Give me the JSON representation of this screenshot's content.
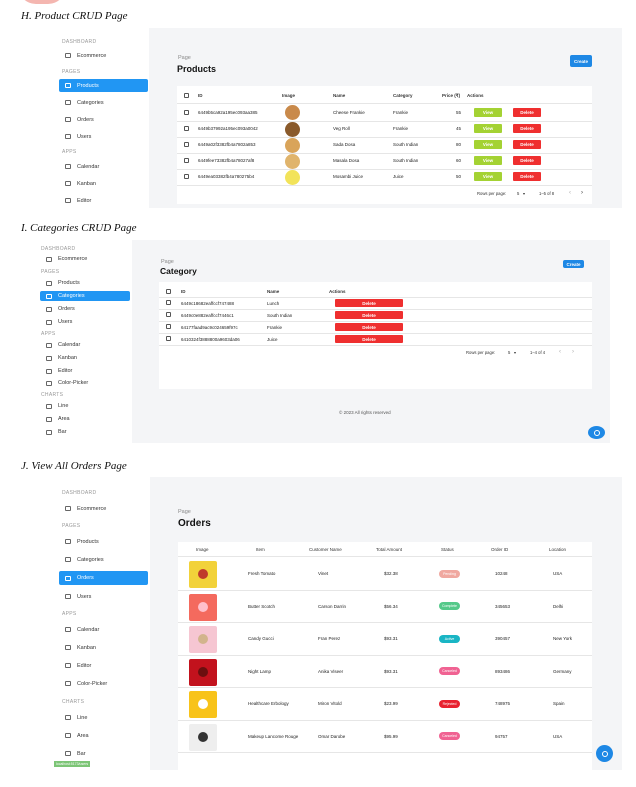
{
  "captions": {
    "h": "H.  Product CRUD Page",
    "i": "I.   Categories CRUD Page",
    "j": "J.   View All Orders Page"
  },
  "colors": {
    "primary": "#2196f3",
    "view": "#a4d233",
    "delete": "#ef2f2f"
  },
  "sidebar": {
    "dashboard": "DASHBOARD",
    "ecommerce": "Ecommerce",
    "pages": "PAGES",
    "products": "Products",
    "categories": "Categories",
    "orders": "Orders",
    "users": "Users",
    "apps": "APPS",
    "calendar": "Calendar",
    "kanban": "Kanban",
    "editor": "Editor",
    "color_picker": "Color-Picker",
    "charts": "CHARTS",
    "line": "Line",
    "area": "Area",
    "bar": "Bar"
  },
  "products": {
    "page_label": "Page",
    "title": "Products",
    "create": "Create",
    "headers": {
      "id": "ID",
      "image": "Image",
      "name": "Name",
      "category": "Category",
      "price": "Price (₹)",
      "actions": "Actions"
    },
    "rows": [
      {
        "id": "6449b5ca92a195ec093aa385",
        "name": "Cheese Frankie",
        "category": "Frankie",
        "price": "55"
      },
      {
        "id": "6449b37992a195ec093a0042",
        "name": "Veg Roll",
        "category": "Frankie",
        "price": "45"
      },
      {
        "id": "6449a02f3382fb4a7802a853",
        "name": "Sada Dosa",
        "category": "South Indian",
        "price": "80"
      },
      {
        "id": "6449fee73382fb4a78027af8",
        "name": "Masala Dosa",
        "category": "South Indian",
        "price": "60"
      },
      {
        "id": "6449ea03382fb4a780275b4",
        "name": "Mosambi Juice",
        "category": "Juice",
        "price": "50"
      }
    ],
    "view": "View",
    "delete": "Delete",
    "pagination": {
      "label": "Rows per page:",
      "value": "5",
      "range": "1–5 of 8"
    }
  },
  "categories": {
    "page_label": "Page",
    "title": "Category",
    "create": "Create",
    "headers": {
      "id": "ID",
      "name": "Name",
      "actions": "Actions"
    },
    "rows": [
      {
        "id": "6449c18682eaffccf747488",
        "name": "Lunch"
      },
      {
        "id": "6449c0e882eaffccf7446c1",
        "name": "South Indian"
      },
      {
        "id": "64177faad9ac9c024659f97c",
        "name": "Frankie"
      },
      {
        "id": "6410324f3888800a9603da06",
        "name": "Juice"
      }
    ],
    "delete": "Delete",
    "pagination": {
      "label": "Rows per page:",
      "value": "5",
      "range": "1–4 of 4"
    },
    "footer": "© 2023 All rights reserved"
  },
  "orders": {
    "page_label": "Page",
    "title": "Orders",
    "headers": {
      "image": "Image",
      "item": "Item",
      "customer": "Customer Name",
      "amount": "Total Amount",
      "status": "Status",
      "order_id": "Order ID",
      "location": "Location"
    },
    "rows": [
      {
        "item": "Fresh Tomato",
        "customer": "Vinet",
        "amount": "$32.38",
        "status": "Pending",
        "status_color": "#f0a8a0",
        "order_id": "10248",
        "location": "USA",
        "img": "#f2d23a",
        "obj": "#c0392b"
      },
      {
        "item": "Butter Scotch",
        "customer": "Carson Darrin",
        "amount": "$56.34",
        "status": "Complete",
        "status_color": "#55c98a",
        "order_id": "345653",
        "location": "Delhi",
        "img": "#f46a5e",
        "obj": "#ffc0cb"
      },
      {
        "item": "Candy Gucci",
        "customer": "Fran Perez",
        "amount": "$93.31",
        "status": "Active",
        "status_color": "#19b5c4",
        "order_id": "390457",
        "location": "New York",
        "img": "#f6c6d2",
        "obj": "#d2b48c"
      },
      {
        "item": "Night Lamp",
        "customer": "Anika Viseer",
        "amount": "$93.31",
        "status": "Canceled",
        "status_color": "#f06292",
        "order_id": "893486",
        "location": "Germany",
        "img": "#c2121d",
        "obj": "#6b0f0f"
      },
      {
        "item": "Healthcare Erbology",
        "customer": "Miron Vitold",
        "amount": "$23.99",
        "status": "Rejected",
        "status_color": "#e8212f",
        "order_id": "748975",
        "location": "Spain",
        "img": "#f8c31a",
        "obj": "#ffffff"
      },
      {
        "item": "Makeup Lancome Rouge",
        "customer": "Omar Darobe",
        "amount": "$95.99",
        "status": "Canceled",
        "status_color": "#f06292",
        "order_id": "94757",
        "location": "USA",
        "img": "#eeeeee",
        "obj": "#333333"
      }
    ],
    "host": "localhost:5173/users"
  }
}
